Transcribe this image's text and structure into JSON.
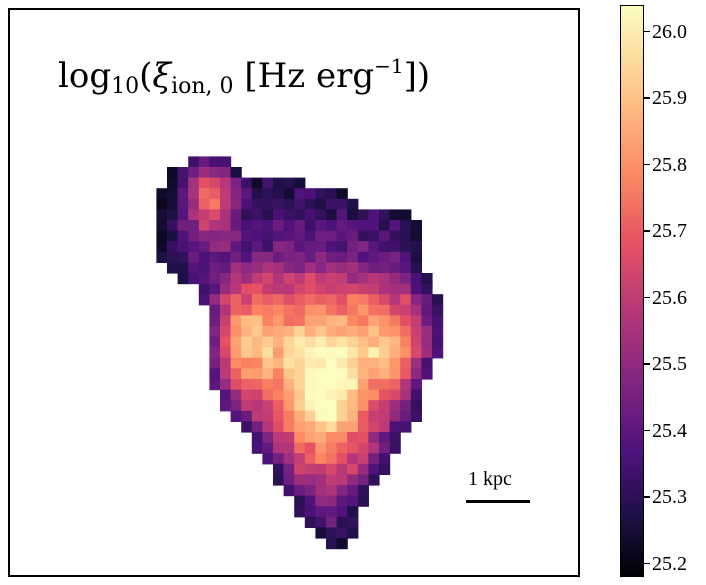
{
  "title": {
    "prefix": "log",
    "sub_10": "10",
    "open": "(",
    "symbol": "ξ",
    "sub_ion": "ion, 0",
    "unit": " [Hz erg",
    "sup": "−1",
    "close": "])"
  },
  "scale_bar": {
    "label": "1 kpc"
  },
  "colorbar": {
    "colormap": "magma",
    "range": [
      25.18,
      26.04
    ],
    "ticks": [
      "25.2",
      "25.3",
      "25.4",
      "25.5",
      "25.6",
      "25.7",
      "25.8",
      "25.9",
      "26.0"
    ]
  }
}
